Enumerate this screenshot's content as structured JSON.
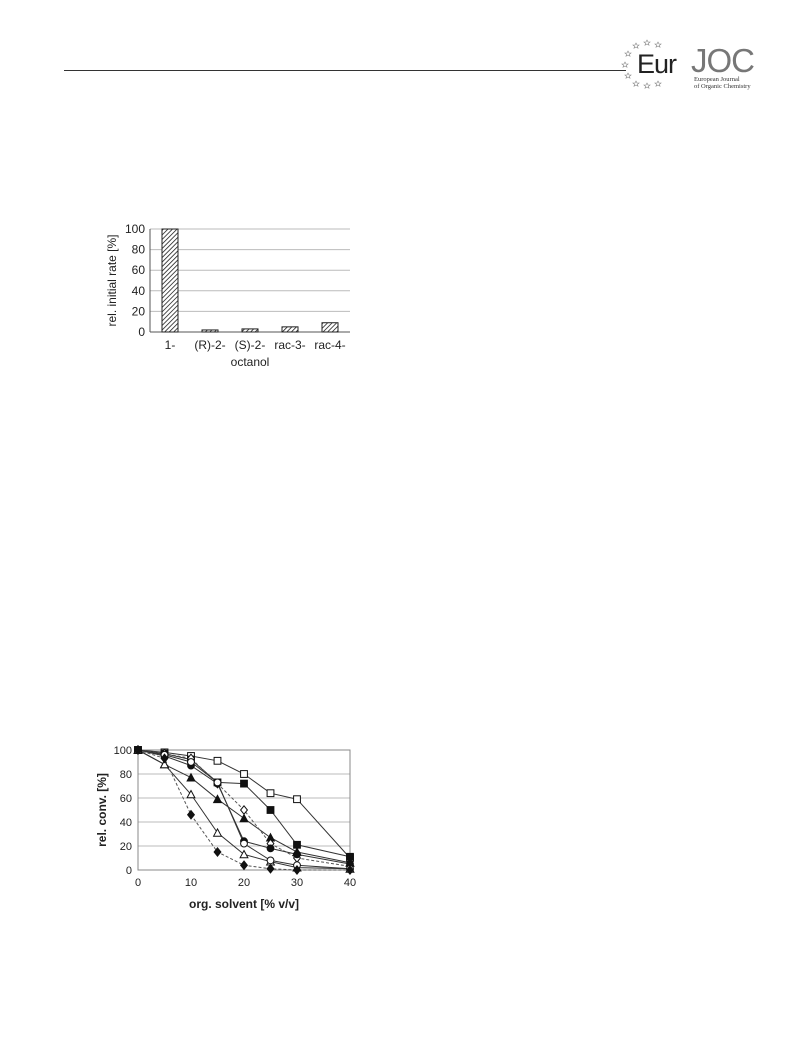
{
  "header": {
    "logo": {
      "brand_left": "Eur",
      "brand_right": "JOC",
      "subtitle_line1": "European Journal",
      "subtitle_line2": "of Organic Chemistry"
    }
  },
  "chart_data": [
    {
      "type": "bar",
      "ylabel": "rel. initial rate [%]",
      "xlabel": "",
      "categories": [
        "1-",
        "(R)-2-",
        "(S)-2-",
        "rac-3-",
        "rac-4-"
      ],
      "category_sublabel": "octanol",
      "values": [
        100,
        2,
        3,
        5,
        9
      ],
      "ylim": [
        0,
        100
      ],
      "yticks": [
        0,
        20,
        40,
        60,
        80,
        100
      ],
      "grid": true,
      "bar_fill": "hatched"
    },
    {
      "type": "line",
      "xlabel": "org. solvent [% v/v]",
      "ylabel": "rel. conv. [%]",
      "xlim": [
        0,
        40
      ],
      "ylim": [
        0,
        100
      ],
      "xticks": [
        0,
        10,
        20,
        30,
        40
      ],
      "yticks": [
        0,
        20,
        40,
        60,
        80,
        100
      ],
      "grid": true,
      "series": [
        {
          "marker": "open-square",
          "dashed": false,
          "x": [
            0,
            5,
            10,
            15,
            20,
            25,
            30,
            40
          ],
          "y": [
            100,
            98,
            95,
            91,
            80,
            64,
            59,
            10
          ]
        },
        {
          "marker": "filled-square",
          "dashed": false,
          "x": [
            0,
            5,
            10,
            15,
            20,
            25,
            30,
            40
          ],
          "y": [
            100,
            97,
            92,
            73,
            72,
            50,
            21,
            11
          ]
        },
        {
          "marker": "filled-triangle",
          "dashed": false,
          "x": [
            0,
            5,
            10,
            15,
            20,
            25,
            30,
            40
          ],
          "y": [
            100,
            88,
            77,
            59,
            43,
            27,
            15,
            6
          ]
        },
        {
          "marker": "open-diamond",
          "dashed": true,
          "x": [
            0,
            5,
            10,
            15,
            20,
            25,
            30,
            40
          ],
          "y": [
            100,
            97,
            93,
            72,
            50,
            22,
            10,
            3
          ]
        },
        {
          "marker": "filled-circle",
          "dashed": false,
          "x": [
            0,
            5,
            10,
            15,
            20,
            25,
            30,
            40
          ],
          "y": [
            100,
            95,
            87,
            72,
            24,
            18,
            13,
            5
          ]
        },
        {
          "marker": "open-triangle",
          "dashed": false,
          "x": [
            0,
            5,
            10,
            15,
            20,
            25,
            30,
            40
          ],
          "y": [
            100,
            88,
            63,
            31,
            13,
            7,
            2,
            1
          ]
        },
        {
          "marker": "open-circle",
          "dashed": false,
          "x": [
            0,
            5,
            10,
            15,
            20,
            25,
            30,
            40
          ],
          "y": [
            100,
            96,
            90,
            73,
            22,
            8,
            4,
            1
          ]
        },
        {
          "marker": "filled-diamond",
          "dashed": true,
          "x": [
            0,
            5,
            10,
            15,
            20,
            25,
            30,
            40
          ],
          "y": [
            100,
            93,
            46,
            15,
            4,
            1,
            0,
            0
          ]
        }
      ]
    }
  ]
}
